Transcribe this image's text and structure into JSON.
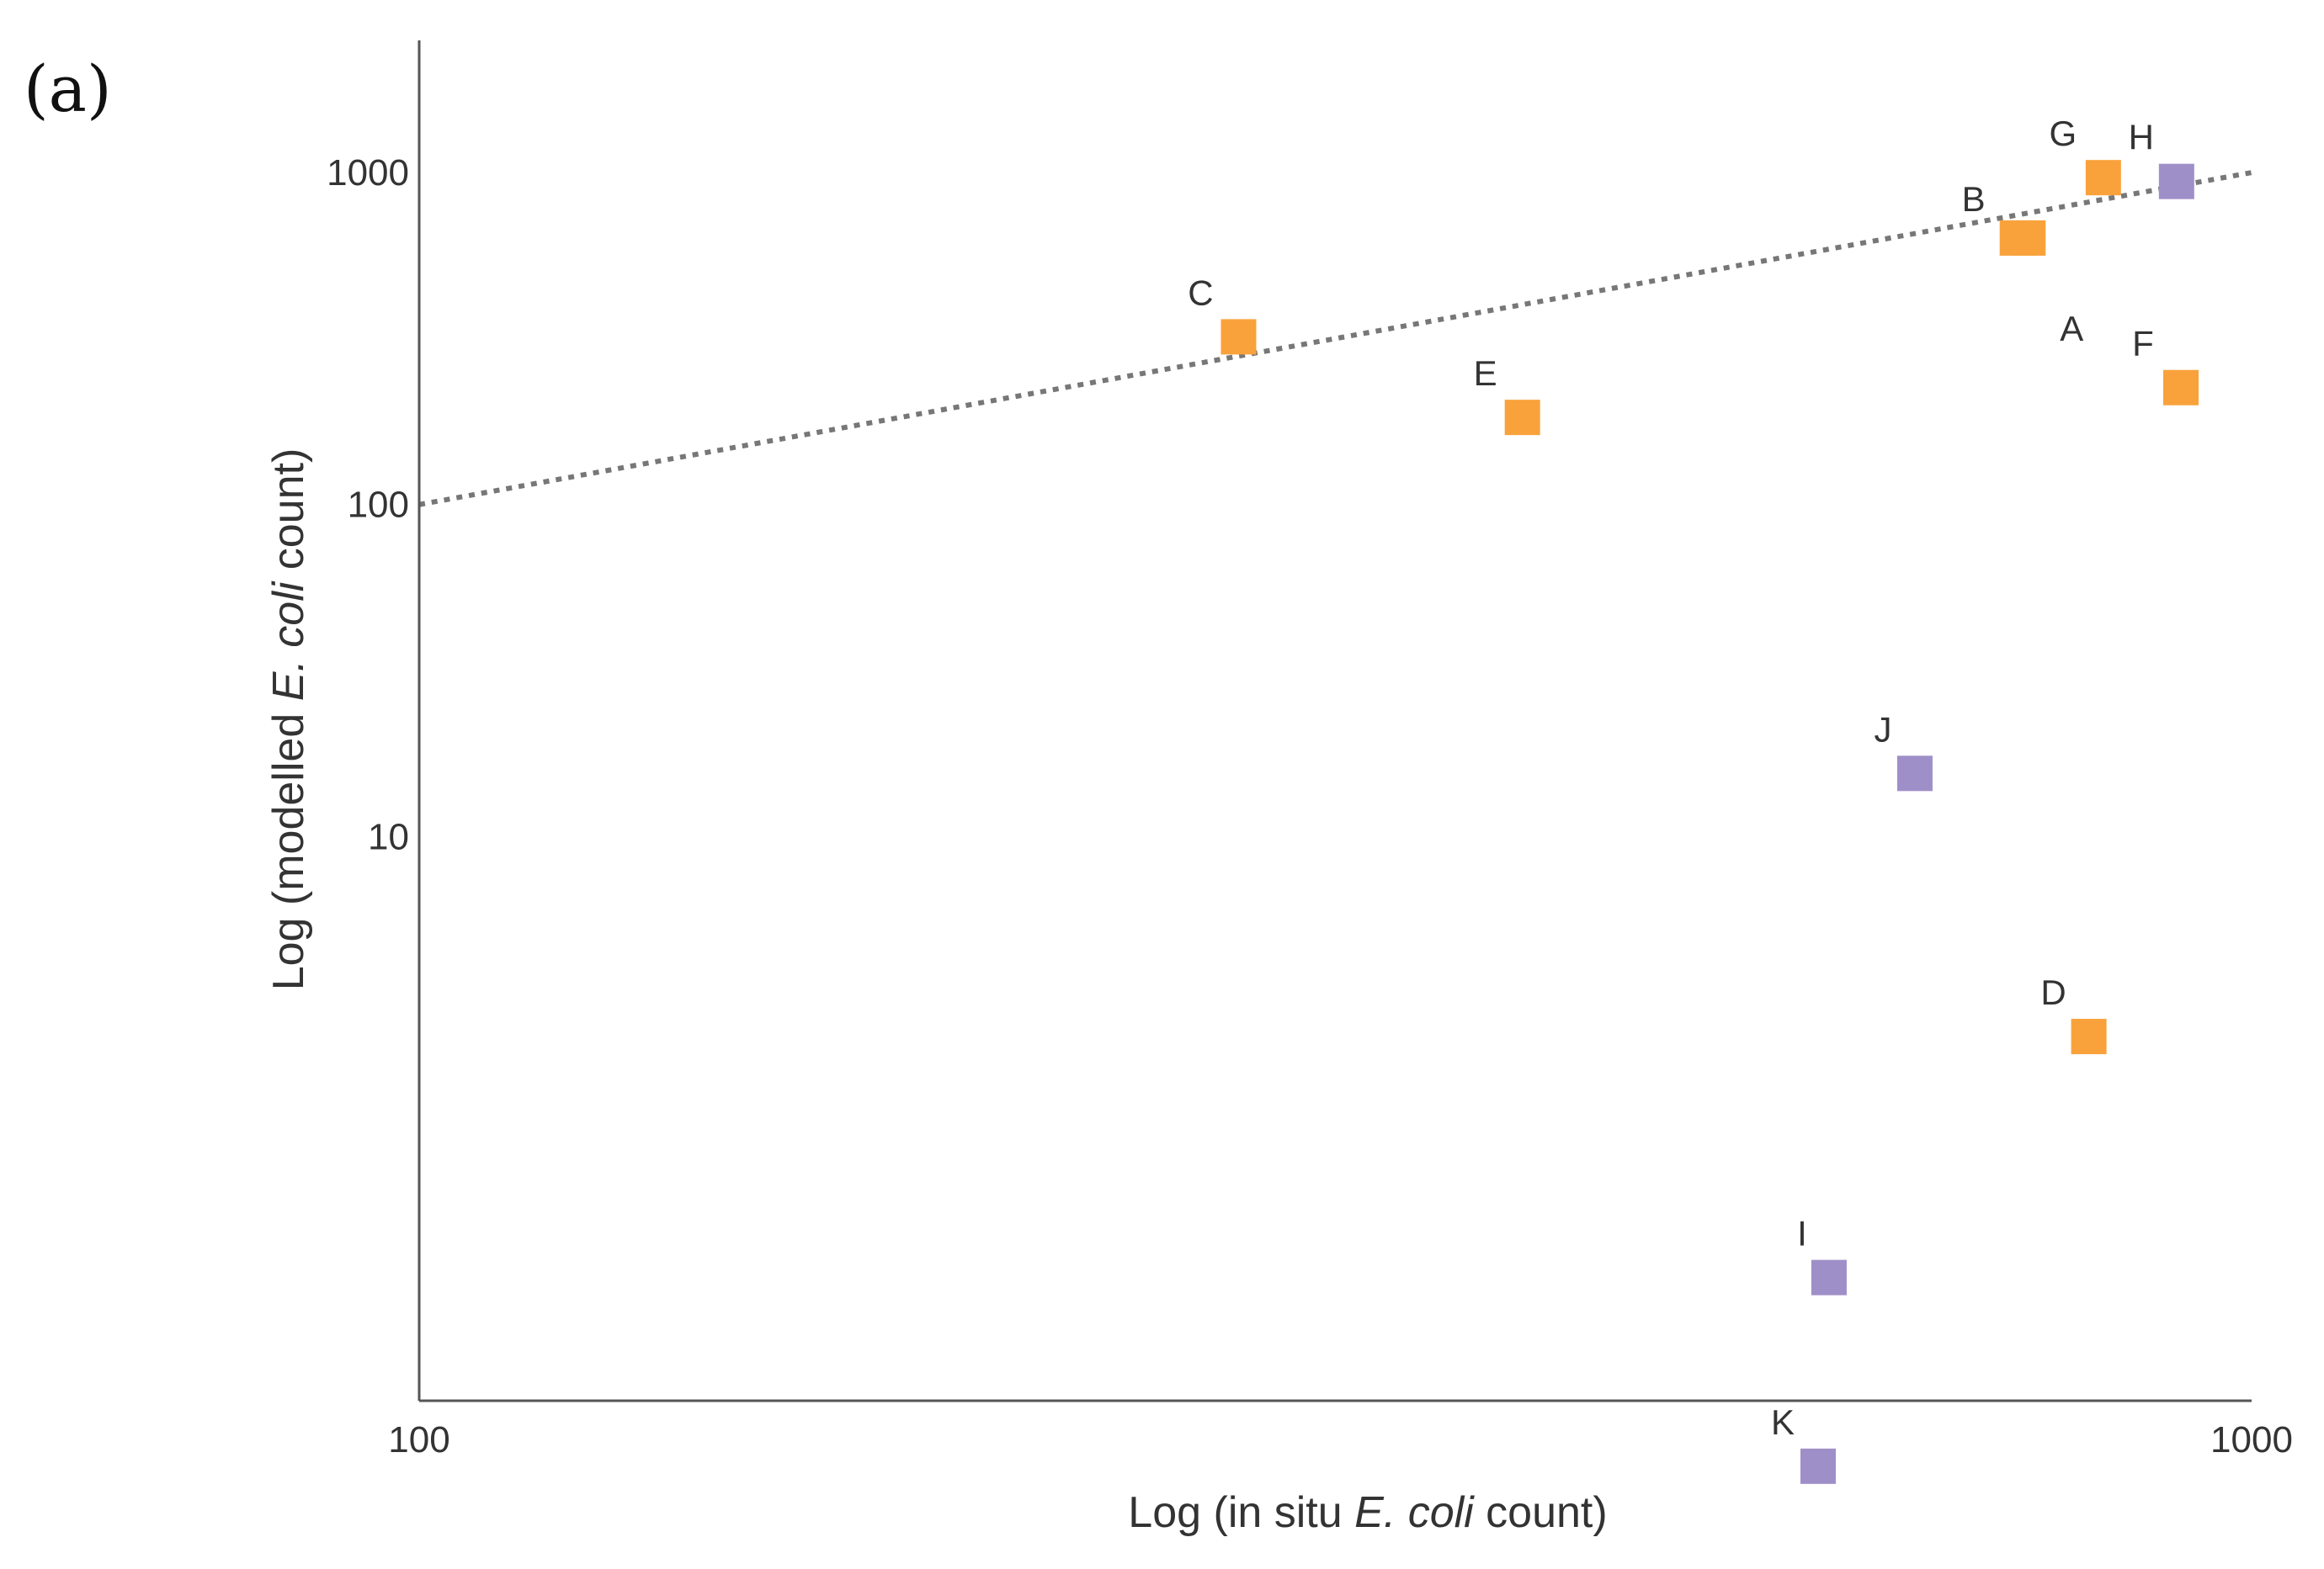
{
  "panel_label": "(a)",
  "chart_data": {
    "type": "scatter",
    "xlabel_parts": [
      "Log (in situ ",
      "E. coli",
      " count)"
    ],
    "ylabel_parts": [
      "Log (modelled ",
      "E. coli",
      " count)"
    ],
    "x_scale": "log",
    "y_scale": "log",
    "xlim": [
      100,
      1000
    ],
    "ylim": [
      0.2,
      2500
    ],
    "x_ticks": [
      100,
      1000
    ],
    "x_tick_labels": [
      "100",
      "1000"
    ],
    "y_ticks": [
      10,
      100,
      1000
    ],
    "y_tick_labels": [
      "10",
      "100",
      "1000"
    ],
    "grid": false,
    "reference_line": {
      "style": "dotted",
      "x": [
        100,
        1000
      ],
      "y": [
        100,
        1000
      ]
    },
    "series_colors": {
      "orange": "#F9A23B",
      "purple": "#9F8FC8"
    },
    "points": [
      {
        "label": "A",
        "x": 755,
        "y": 635,
        "color": "orange"
      },
      {
        "label": "B",
        "x": 745,
        "y": 635,
        "color": "orange"
      },
      {
        "label": "C",
        "x": 280,
        "y": 320,
        "color": "orange"
      },
      {
        "label": "D",
        "x": 815,
        "y": 2.5,
        "color": "orange"
      },
      {
        "label": "E",
        "x": 400,
        "y": 183,
        "color": "orange"
      },
      {
        "label": "F",
        "x": 915,
        "y": 225,
        "color": "orange"
      },
      {
        "label": "G",
        "x": 830,
        "y": 965,
        "color": "orange"
      },
      {
        "label": "H",
        "x": 910,
        "y": 940,
        "color": "purple"
      },
      {
        "label": "I",
        "x": 588,
        "y": 0.47,
        "color": "purple"
      },
      {
        "label": "J",
        "x": 655,
        "y": 15.5,
        "color": "purple"
      },
      {
        "label": "K",
        "x": 580,
        "y": 0.127,
        "color": "purple"
      }
    ]
  }
}
